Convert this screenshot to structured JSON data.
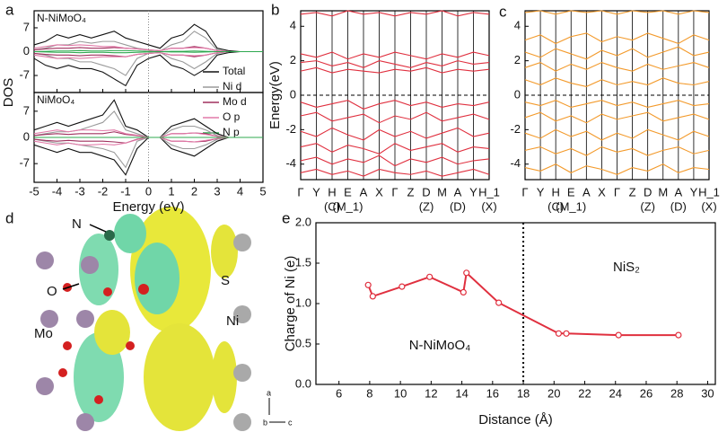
{
  "panels": {
    "letters": [
      "a",
      "b",
      "c",
      "d",
      "e"
    ],
    "structure_labels": [
      "N",
      "O",
      "Mo",
      "S",
      "Ni"
    ],
    "axis_letters": [
      "a",
      "b",
      "c"
    ]
  },
  "chart_data": [
    {
      "type": "line",
      "title": "N-NiMoO₄",
      "ylabel": "DOS",
      "x": [
        -5,
        -4.5,
        -4,
        -3.5,
        -3,
        -2.5,
        -2,
        -1.5,
        -1,
        -0.5,
        0,
        0.5,
        1,
        1.5,
        2,
        2.5,
        3,
        3.5,
        4,
        4.5,
        5
      ],
      "xlim": [
        -5,
        5
      ],
      "xticks": [
        -5,
        -4,
        -3,
        -2,
        -1,
        0,
        1,
        2,
        3,
        4,
        5
      ],
      "ylim": [
        -12,
        12
      ],
      "yticks": [
        -7,
        0,
        7
      ],
      "vline": 0,
      "series": [
        {
          "name": "Total",
          "color": "#111111",
          "values": [
            2,
            3,
            5,
            4,
            5,
            4,
            5,
            6,
            4,
            3,
            2,
            1,
            4,
            5,
            8,
            6,
            1,
            0.3,
            0,
            0,
            0
          ],
          "values_down": [
            -2,
            -4,
            -5,
            -4,
            -5,
            -5,
            -6,
            -8,
            -10,
            -4,
            -2,
            -1,
            -4,
            -5,
            -7,
            -5,
            -1,
            -0.3,
            0,
            0,
            0
          ]
        },
        {
          "name": "Ni d",
          "color": "#9a9a9a",
          "values": [
            0.5,
            1,
            2,
            2,
            3,
            2.5,
            3,
            3,
            2,
            1,
            0.5,
            0.2,
            2,
            3,
            6,
            4,
            0.5,
            0,
            0,
            0,
            0
          ],
          "values_down": [
            -0.5,
            -1,
            -2,
            -2,
            -3,
            -3,
            -4,
            -5,
            -7,
            -2,
            -0.5,
            -0.2,
            -2,
            -3,
            -5,
            -3,
            -0.5,
            0,
            0,
            0,
            0
          ]
        },
        {
          "name": "Mo d",
          "color": "#a0305e",
          "values": [
            0.5,
            0.8,
            1,
            1,
            1.2,
            1,
            1,
            1.2,
            1,
            0.8,
            0.5,
            0.3,
            1,
            1,
            1.5,
            1,
            0.3,
            0,
            0,
            0,
            0
          ],
          "values_down": [
            -0.5,
            -0.8,
            -1,
            -1,
            -1.2,
            -1,
            -1,
            -1.2,
            -1.5,
            -0.8,
            -0.5,
            -0.3,
            -1,
            -1,
            -1.5,
            -1,
            -0.3,
            0,
            0,
            0,
            0
          ]
        },
        {
          "name": "O p",
          "color": "#e27aa8",
          "values": [
            1,
            1.5,
            2,
            1.8,
            2,
            1.8,
            1.5,
            1.5,
            1,
            0.8,
            0.5,
            0.3,
            1,
            1,
            1.2,
            1,
            0.3,
            0,
            0,
            0,
            0
          ],
          "values_down": [
            -1,
            -1.5,
            -2,
            -1.8,
            -2,
            -1.8,
            -1.5,
            -1.5,
            -1.5,
            -0.8,
            -0.5,
            -0.3,
            -1,
            -1,
            -1.2,
            -1,
            -0.3,
            0,
            0,
            0,
            0
          ]
        },
        {
          "name": "N p",
          "color": "#2fa84f",
          "values": [
            0,
            0.1,
            0.2,
            0.2,
            0.3,
            0.2,
            0.2,
            0.3,
            0.3,
            0.2,
            0.1,
            0,
            0.1,
            0.1,
            0.2,
            0.1,
            0,
            0,
            0,
            0,
            0
          ],
          "values_down": [
            0,
            -0.1,
            -0.2,
            -0.2,
            -0.3,
            -0.2,
            -0.2,
            -0.3,
            -0.3,
            -0.2,
            -0.1,
            0,
            -0.1,
            -0.1,
            -0.2,
            -0.1,
            0,
            0,
            0,
            0,
            0
          ]
        }
      ]
    },
    {
      "type": "line",
      "title": "NiMoO₄",
      "xlabel": "Energy (eV)",
      "x": [
        -5,
        -4.5,
        -4,
        -3.5,
        -3,
        -2.5,
        -2,
        -1.5,
        -1,
        -0.5,
        0,
        0.5,
        1,
        1.5,
        2,
        2.5,
        3,
        3.5,
        4,
        4.5,
        5
      ],
      "xlim": [
        -5,
        5
      ],
      "xticks": [
        -5,
        -4,
        -3,
        -2,
        -1,
        0,
        1,
        2,
        3,
        4,
        5
      ],
      "ylim": [
        -12,
        12
      ],
      "yticks": [
        -7,
        0,
        7
      ],
      "vline": 0,
      "series": [
        {
          "color": "#111111",
          "values": [
            2,
            3,
            4,
            3,
            4,
            5,
            6,
            10,
            3,
            2,
            0,
            0,
            3,
            4,
            5,
            3,
            1,
            0,
            0,
            0,
            0
          ],
          "values_down": [
            -2,
            -3,
            -4,
            -3,
            -4,
            -4,
            -5,
            -6,
            -10,
            -3,
            0,
            0,
            -3,
            -4,
            -5,
            -3,
            -1,
            0,
            0,
            0,
            0
          ]
        },
        {
          "color": "#9a9a9a",
          "values": [
            0.5,
            1,
            1.5,
            1.5,
            2,
            3,
            4,
            7,
            2,
            1,
            0,
            0,
            2,
            3,
            3,
            2,
            0.5,
            0,
            0,
            0,
            0
          ],
          "values_down": [
            -0.5,
            -1,
            -1.5,
            -1.5,
            -2,
            -2.5,
            -3,
            -4,
            -8,
            -1,
            0,
            0,
            -2,
            -3,
            -3,
            -2,
            -0.5,
            0,
            0,
            0,
            0
          ]
        },
        {
          "color": "#a0305e",
          "values": [
            0.5,
            0.8,
            1,
            0.8,
            1,
            1,
            1,
            1.5,
            0.8,
            0.5,
            0,
            0,
            1,
            1,
            1.2,
            1,
            0.3,
            0,
            0,
            0,
            0
          ],
          "values_down": [
            -0.5,
            -0.8,
            -1,
            -0.8,
            -1,
            -1,
            -1,
            -1.2,
            -1.5,
            -0.5,
            0,
            0,
            -1,
            -1,
            -1.2,
            -1,
            -0.3,
            0,
            0,
            0,
            0
          ]
        },
        {
          "color": "#e27aa8",
          "values": [
            1,
            1.5,
            2,
            1.5,
            2,
            2,
            1.8,
            2,
            1,
            0.6,
            0,
            0,
            1,
            1,
            1.2,
            0.8,
            0.3,
            0,
            0,
            0,
            0
          ],
          "values_down": [
            -1,
            -1.5,
            -2,
            -1.5,
            -2,
            -2,
            -1.8,
            -2,
            -1.5,
            -0.6,
            0,
            0,
            -1,
            -1,
            -1.2,
            -0.8,
            -0.3,
            0,
            0,
            0,
            0
          ]
        },
        {
          "color": "#2fa84f",
          "values": [
            0,
            0,
            0,
            0,
            0,
            0,
            0,
            0,
            0,
            0,
            0,
            0,
            0,
            0,
            0,
            0,
            0,
            0,
            0,
            0,
            0
          ],
          "values_down": [
            0,
            0,
            0,
            0,
            0,
            0,
            0,
            0,
            0,
            0,
            0,
            0,
            0,
            0,
            0,
            0,
            0,
            0,
            0,
            0,
            0
          ]
        }
      ]
    },
    {
      "type": "line",
      "ylabel": "Energy(eV)",
      "categories": [
        "Γ",
        "Y",
        "H",
        "E",
        "A",
        "X",
        "Γ",
        "Z",
        "D",
        "M",
        "A",
        "Y",
        "H_1"
      ],
      "sublabels": [
        null,
        null,
        "(C)",
        "(M_1)",
        null,
        null,
        null,
        null,
        "(Z)",
        null,
        "(D)",
        null,
        "(X)"
      ],
      "ylim": [
        -4.9,
        4.9
      ],
      "yticks": [
        -4,
        -2,
        0,
        2,
        4
      ],
      "hline": 0,
      "series": [
        {
          "color": "#e0303f",
          "values": [
            4.7,
            4.8,
            4.6,
            4.9,
            4.7,
            4.8,
            4.6,
            4.8,
            4.7,
            4.9,
            4.6,
            4.8,
            4.7
          ]
        },
        {
          "color": "#e0303f",
          "values": [
            2.4,
            2.2,
            2.5,
            2.1,
            2.4,
            2.2,
            2.5,
            2.3,
            2.1,
            2.4,
            2.2,
            2.5,
            2.3
          ]
        },
        {
          "color": "#e0303f",
          "values": [
            1.9,
            2.0,
            1.7,
            1.9,
            1.6,
            2.0,
            1.8,
            1.6,
            1.9,
            1.7,
            2.0,
            1.8,
            1.9
          ]
        },
        {
          "color": "#e0303f",
          "values": [
            1.4,
            1.6,
            1.3,
            1.5,
            1.4,
            1.3,
            1.5,
            1.4,
            1.6,
            1.3,
            1.5,
            1.4,
            1.5
          ]
        },
        {
          "color": "#e0303f",
          "values": [
            -0.4,
            -0.7,
            -0.5,
            -0.3,
            -0.8,
            -0.5,
            -0.3,
            -0.6,
            -0.4,
            -0.7,
            -0.5,
            -0.6,
            -0.4
          ]
        },
        {
          "color": "#e0303f",
          "values": [
            -1.2,
            -1.0,
            -1.5,
            -1.3,
            -1.1,
            -1.6,
            -1.2,
            -1.4,
            -1.0,
            -1.5,
            -1.3,
            -1.1,
            -1.4
          ]
        },
        {
          "color": "#e0303f",
          "values": [
            -2.1,
            -2.4,
            -1.9,
            -2.3,
            -2.6,
            -2.0,
            -2.4,
            -2.1,
            -2.5,
            -2.2,
            -1.9,
            -2.4,
            -2.2
          ]
        },
        {
          "color": "#e0303f",
          "values": [
            -3.0,
            -2.8,
            -3.3,
            -2.9,
            -3.1,
            -3.4,
            -2.8,
            -3.2,
            -3.0,
            -2.8,
            -3.3,
            -3.0,
            -3.1
          ]
        },
        {
          "color": "#e0303f",
          "values": [
            -3.8,
            -3.6,
            -4.0,
            -3.7,
            -3.9,
            -3.5,
            -4.1,
            -3.7,
            -3.9,
            -3.6,
            -4.0,
            -3.8,
            -3.7
          ]
        },
        {
          "color": "#e0303f",
          "values": [
            -4.5,
            -4.3,
            -4.6,
            -4.4,
            -4.7,
            -4.3,
            -4.5,
            -4.6,
            -4.4,
            -4.7,
            -4.5,
            -4.3,
            -4.6
          ]
        }
      ]
    },
    {
      "type": "line",
      "categories": [
        "Γ",
        "Y",
        "H",
        "E",
        "A",
        "X",
        "Γ",
        "Z",
        "D",
        "M",
        "A",
        "Y",
        "H_1"
      ],
      "sublabels": [
        null,
        null,
        "(C)",
        "(M_1)",
        null,
        null,
        null,
        null,
        "(Z)",
        null,
        "(D)",
        null,
        "(X)"
      ],
      "ylim": [
        -4.9,
        4.9
      ],
      "yticks": [
        -4,
        -2,
        0,
        2,
        4
      ],
      "hline": 0,
      "series": [
        {
          "color": "#f39a2b",
          "values": [
            4.8,
            4.9,
            4.7,
            4.9,
            4.8,
            4.9,
            4.7,
            4.9,
            4.8,
            4.9,
            4.7,
            4.9,
            4.8
          ]
        },
        {
          "color": "#f39a2b",
          "values": [
            3.2,
            3.5,
            3.0,
            3.4,
            3.6,
            3.1,
            3.4,
            3.2,
            3.6,
            3.3,
            3.0,
            3.5,
            3.2
          ]
        },
        {
          "color": "#f39a2b",
          "values": [
            2.5,
            2.2,
            2.7,
            2.4,
            2.1,
            2.6,
            2.3,
            2.7,
            2.2,
            2.5,
            2.8,
            2.3,
            2.5
          ]
        },
        {
          "color": "#f39a2b",
          "values": [
            1.6,
            1.9,
            1.4,
            1.8,
            1.5,
            1.9,
            1.6,
            1.4,
            1.8,
            1.5,
            1.7,
            1.9,
            1.6
          ]
        },
        {
          "color": "#f39a2b",
          "values": [
            0.9,
            0.6,
            1.0,
            0.7,
            0.5,
            0.9,
            0.6,
            0.8,
            0.6,
            1.0,
            0.7,
            0.6,
            0.8
          ]
        },
        {
          "color": "#f39a2b",
          "values": [
            -0.4,
            -0.6,
            -0.3,
            -0.7,
            -0.5,
            -0.3,
            -0.6,
            -0.4,
            -0.7,
            -0.5,
            -0.3,
            -0.6,
            -0.5
          ]
        },
        {
          "color": "#f39a2b",
          "values": [
            -1.3,
            -1.0,
            -1.5,
            -1.2,
            -1.6,
            -1.1,
            -1.4,
            -1.2,
            -1.0,
            -1.5,
            -1.3,
            -1.1,
            -1.4
          ]
        },
        {
          "color": "#f39a2b",
          "values": [
            -2.2,
            -2.5,
            -2.0,
            -2.4,
            -2.1,
            -2.6,
            -2.2,
            -2.5,
            -2.0,
            -2.3,
            -2.6,
            -2.1,
            -2.4
          ]
        },
        {
          "color": "#f39a2b",
          "values": [
            -3.2,
            -3.0,
            -3.4,
            -3.1,
            -3.5,
            -3.0,
            -3.3,
            -3.1,
            -3.5,
            -3.2,
            -3.0,
            -3.4,
            -3.2
          ]
        },
        {
          "color": "#f39a2b",
          "values": [
            -4.2,
            -4.4,
            -4.0,
            -4.5,
            -4.1,
            -4.3,
            -4.6,
            -4.2,
            -4.4,
            -4.0,
            -4.5,
            -4.2,
            -4.3
          ]
        }
      ]
    },
    {
      "type": "line",
      "xlabel": "Distance (Å)",
      "ylabel": "Charge of Ni (e)",
      "x": [
        7.9,
        8.2,
        10.1,
        11.9,
        14.1,
        14.3,
        16.4,
        20.3,
        20.8,
        24.2,
        28.1
      ],
      "series": [
        {
          "color": "#e0303f",
          "values": [
            1.23,
            1.09,
            1.21,
            1.33,
            1.14,
            1.38,
            1.01,
            0.63,
            0.63,
            0.61,
            0.61
          ]
        }
      ],
      "xlim": [
        4.5,
        30.5
      ],
      "xticks": [
        6,
        8,
        10,
        12,
        14,
        16,
        18,
        20,
        22,
        24,
        26,
        28,
        30
      ],
      "ylim": [
        0,
        2
      ],
      "yticks": [
        {
          "value": 0,
          "label": "0.0"
        },
        {
          "value": 0.5,
          "label": "0.5"
        },
        {
          "value": 1,
          "label": "1.0"
        },
        {
          "value": 1.5,
          "label": "1.5"
        },
        {
          "value": 2,
          "label": "2.0"
        }
      ],
      "vline": 18,
      "annotations": [
        "N-NiMoO₄",
        "NiS₂"
      ],
      "markers": true
    }
  ]
}
